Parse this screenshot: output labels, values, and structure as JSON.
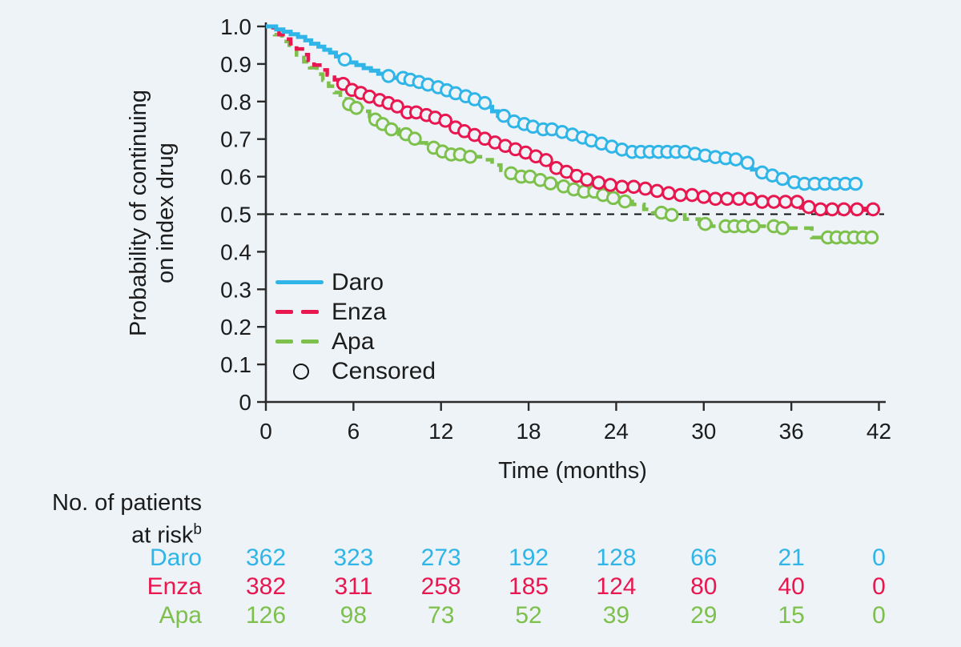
{
  "chart_data": {
    "type": "line",
    "subtype": "kaplan-meier-step",
    "title": "",
    "xlabel": "Time (months)",
    "ylabel_lines": [
      "Probability of continuing",
      "on index drug"
    ],
    "xlim": [
      0,
      42
    ],
    "ylim": [
      0,
      1.0
    ],
    "x_ticks": [
      "0",
      "6",
      "12",
      "18",
      "24",
      "30",
      "36",
      "42"
    ],
    "y_ticks": [
      "1.0",
      "0.9",
      "0.8",
      "0.7",
      "0.6",
      "0.5",
      "0.4",
      "0.3",
      "0.2",
      "0.1",
      "0"
    ],
    "reference_line_y": 0.5,
    "grid": false,
    "background_color": "#edf3f7",
    "axis_color": "#2b2b2b",
    "legend_position": "inside-lower-left",
    "legend": [
      {
        "label": "Daro",
        "marker": "solid-line"
      },
      {
        "label": "Enza",
        "marker": "dashed-line"
      },
      {
        "label": "Apa",
        "marker": "dashed-line"
      },
      {
        "label": "Censored",
        "marker": "open-circle"
      }
    ],
    "series": [
      {
        "name": "Apa",
        "color": "#7dc04b",
        "style": "dashed",
        "steps": [
          [
            0,
            1.0
          ],
          [
            0.6,
            0.978
          ],
          [
            1.1,
            0.96
          ],
          [
            1.6,
            0.942
          ],
          [
            2.1,
            0.924
          ],
          [
            2.6,
            0.906
          ],
          [
            3.0,
            0.89
          ],
          [
            3.5,
            0.873
          ],
          [
            3.9,
            0.857
          ],
          [
            4.3,
            0.841
          ],
          [
            4.7,
            0.824
          ],
          [
            5.1,
            0.807
          ],
          [
            5.6,
            0.793
          ],
          [
            6.1,
            0.783
          ],
          [
            6.6,
            0.774
          ],
          [
            7.1,
            0.752
          ],
          [
            7.7,
            0.74
          ],
          [
            8.4,
            0.726
          ],
          [
            9.1,
            0.713
          ],
          [
            9.8,
            0.701
          ],
          [
            10.4,
            0.69
          ],
          [
            11.0,
            0.677
          ],
          [
            11.7,
            0.667
          ],
          [
            12.5,
            0.659
          ],
          [
            13.5,
            0.653
          ],
          [
            14.7,
            0.645
          ],
          [
            15.5,
            0.631
          ],
          [
            16.1,
            0.617
          ],
          [
            16.7,
            0.609
          ],
          [
            17.5,
            0.6
          ],
          [
            18.3,
            0.591
          ],
          [
            19.1,
            0.582
          ],
          [
            19.9,
            0.574
          ],
          [
            20.9,
            0.566
          ],
          [
            21.7,
            0.56
          ],
          [
            22.7,
            0.551
          ],
          [
            23.5,
            0.543
          ],
          [
            24.3,
            0.534
          ],
          [
            25.1,
            0.526
          ],
          [
            25.9,
            0.513
          ],
          [
            26.5,
            0.504
          ],
          [
            27.3,
            0.498
          ],
          [
            28.7,
            0.487
          ],
          [
            29.7,
            0.474
          ],
          [
            30.5,
            0.468
          ],
          [
            35.2,
            0.463
          ],
          [
            37.4,
            0.438
          ],
          [
            41.6,
            0.436
          ]
        ],
        "censor_times": [
          5.7,
          6.2,
          7.5,
          8.0,
          8.6,
          9.6,
          10.2,
          11.5,
          12.1,
          12.7,
          13.3,
          14.0,
          16.8,
          17.5,
          18.1,
          18.8,
          19.5,
          20.4,
          21.1,
          21.8,
          22.5,
          23.1,
          23.8,
          24.6,
          27.1,
          27.8,
          30.1,
          31.5,
          32.1,
          32.7,
          33.4,
          34.8,
          35.4,
          38.5,
          39.1,
          39.7,
          40.3,
          40.9,
          41.5
        ]
      },
      {
        "name": "Enza",
        "color": "#e8174f",
        "style": "dashed-then-solid",
        "dash_until": 5.1,
        "steps": [
          [
            0,
            1.0
          ],
          [
            0.5,
            0.99
          ],
          [
            0.9,
            0.978
          ],
          [
            1.3,
            0.966
          ],
          [
            1.7,
            0.954
          ],
          [
            2.1,
            0.94
          ],
          [
            2.5,
            0.925
          ],
          [
            2.9,
            0.91
          ],
          [
            3.3,
            0.897
          ],
          [
            3.7,
            0.884
          ],
          [
            4.2,
            0.871
          ],
          [
            4.7,
            0.858
          ],
          [
            5.1,
            0.847
          ],
          [
            5.5,
            0.839
          ],
          [
            5.9,
            0.831
          ],
          [
            6.3,
            0.823
          ],
          [
            6.8,
            0.813
          ],
          [
            7.3,
            0.804
          ],
          [
            7.9,
            0.796
          ],
          [
            8.5,
            0.787
          ],
          [
            9.1,
            0.779
          ],
          [
            9.7,
            0.771
          ],
          [
            10.4,
            0.764
          ],
          [
            11.1,
            0.757
          ],
          [
            11.8,
            0.749
          ],
          [
            12.4,
            0.741
          ],
          [
            12.9,
            0.731
          ],
          [
            13.4,
            0.721
          ],
          [
            13.9,
            0.711
          ],
          [
            14.4,
            0.701
          ],
          [
            15.1,
            0.691
          ],
          [
            15.8,
            0.682
          ],
          [
            16.5,
            0.673
          ],
          [
            17.2,
            0.664
          ],
          [
            17.9,
            0.654
          ],
          [
            18.6,
            0.644
          ],
          [
            19.3,
            0.633
          ],
          [
            19.9,
            0.623
          ],
          [
            20.5,
            0.613
          ],
          [
            21.1,
            0.602
          ],
          [
            21.7,
            0.592
          ],
          [
            22.4,
            0.584
          ],
          [
            23.3,
            0.578
          ],
          [
            24.3,
            0.573
          ],
          [
            25.3,
            0.568
          ],
          [
            26.3,
            0.562
          ],
          [
            27.3,
            0.556
          ],
          [
            28.3,
            0.551
          ],
          [
            29.3,
            0.546
          ],
          [
            30.1,
            0.541
          ],
          [
            33.7,
            0.533
          ],
          [
            36.7,
            0.519
          ],
          [
            37.3,
            0.513
          ],
          [
            41.6,
            0.513
          ]
        ],
        "censor_times": [
          5.3,
          5.9,
          6.5,
          7.1,
          7.8,
          8.4,
          9.0,
          9.7,
          10.3,
          11.0,
          11.6,
          12.3,
          13.0,
          13.6,
          14.3,
          15.0,
          15.7,
          16.4,
          17.1,
          17.8,
          18.5,
          19.2,
          19.9,
          20.6,
          21.3,
          22.0,
          22.8,
          23.6,
          24.4,
          25.2,
          26.0,
          26.8,
          27.6,
          28.4,
          29.2,
          30.0,
          30.8,
          31.6,
          32.4,
          33.2,
          34.0,
          34.8,
          35.6,
          36.4,
          37.2,
          38.0,
          38.8,
          39.6,
          40.5,
          41.6
        ]
      },
      {
        "name": "Daro",
        "color": "#2fb5e8",
        "style": "solid",
        "steps": [
          [
            0,
            1.0
          ],
          [
            0.7,
            0.992
          ],
          [
            1.2,
            0.986
          ],
          [
            1.7,
            0.979
          ],
          [
            2.2,
            0.972
          ],
          [
            2.7,
            0.963
          ],
          [
            3.1,
            0.954
          ],
          [
            3.6,
            0.946
          ],
          [
            4.0,
            0.938
          ],
          [
            4.4,
            0.93
          ],
          [
            4.8,
            0.92
          ],
          [
            5.2,
            0.912
          ],
          [
            5.7,
            0.904
          ],
          [
            6.2,
            0.897
          ],
          [
            6.7,
            0.889
          ],
          [
            7.2,
            0.882
          ],
          [
            7.7,
            0.874
          ],
          [
            8.2,
            0.868
          ],
          [
            8.7,
            0.863
          ],
          [
            9.8,
            0.858
          ],
          [
            10.4,
            0.852
          ],
          [
            11.0,
            0.845
          ],
          [
            11.6,
            0.838
          ],
          [
            12.2,
            0.83
          ],
          [
            12.8,
            0.822
          ],
          [
            13.4,
            0.814
          ],
          [
            14.0,
            0.806
          ],
          [
            14.6,
            0.796
          ],
          [
            15.1,
            0.786
          ],
          [
            15.5,
            0.774
          ],
          [
            15.9,
            0.762
          ],
          [
            16.4,
            0.754
          ],
          [
            17.0,
            0.747
          ],
          [
            17.6,
            0.74
          ],
          [
            18.2,
            0.733
          ],
          [
            18.9,
            0.726
          ],
          [
            19.7,
            0.719
          ],
          [
            20.5,
            0.712
          ],
          [
            21.3,
            0.704
          ],
          [
            22.0,
            0.696
          ],
          [
            22.6,
            0.688
          ],
          [
            23.2,
            0.68
          ],
          [
            23.8,
            0.672
          ],
          [
            24.5,
            0.666
          ],
          [
            28.8,
            0.661
          ],
          [
            29.5,
            0.656
          ],
          [
            30.3,
            0.652
          ],
          [
            31.2,
            0.649
          ],
          [
            32.1,
            0.646
          ],
          [
            32.9,
            0.637
          ],
          [
            33.3,
            0.619
          ],
          [
            33.9,
            0.611
          ],
          [
            34.5,
            0.603
          ],
          [
            35.0,
            0.594
          ],
          [
            35.5,
            0.585
          ],
          [
            36.3,
            0.581
          ],
          [
            40.4,
            0.581
          ]
        ],
        "censor_times": [
          5.4,
          8.4,
          9.4,
          9.9,
          10.5,
          11.1,
          11.8,
          12.4,
          13.0,
          13.7,
          14.3,
          15.0,
          16.3,
          17.0,
          17.7,
          18.3,
          19.0,
          19.6,
          20.3,
          21.0,
          21.7,
          22.3,
          23.0,
          23.7,
          24.4,
          25.1,
          25.7,
          26.3,
          26.9,
          27.5,
          28.1,
          28.7,
          29.4,
          30.1,
          30.8,
          31.5,
          32.2,
          33.0,
          34.0,
          34.7,
          35.4,
          36.2,
          36.9,
          37.6,
          38.3,
          39.0,
          39.7,
          40.4
        ]
      }
    ],
    "risk_table": {
      "header_line1": "No. of patients",
      "header_line2": "at risk",
      "header_superscript": "b",
      "time_points": [
        0,
        6,
        12,
        18,
        24,
        30,
        36,
        42
      ],
      "rows": [
        {
          "label": "Daro",
          "color": "#2fb5e8",
          "values": [
            "362",
            "323",
            "273",
            "192",
            "128",
            "66",
            "21",
            "0"
          ]
        },
        {
          "label": "Enza",
          "color": "#e8174f",
          "values": [
            "382",
            "311",
            "258",
            "185",
            "124",
            "80",
            "40",
            "0"
          ]
        },
        {
          "label": "Apa",
          "color": "#7dc04b",
          "values": [
            "126",
            "98",
            "73",
            "52",
            "39",
            "29",
            "15",
            "0"
          ]
        }
      ]
    }
  }
}
